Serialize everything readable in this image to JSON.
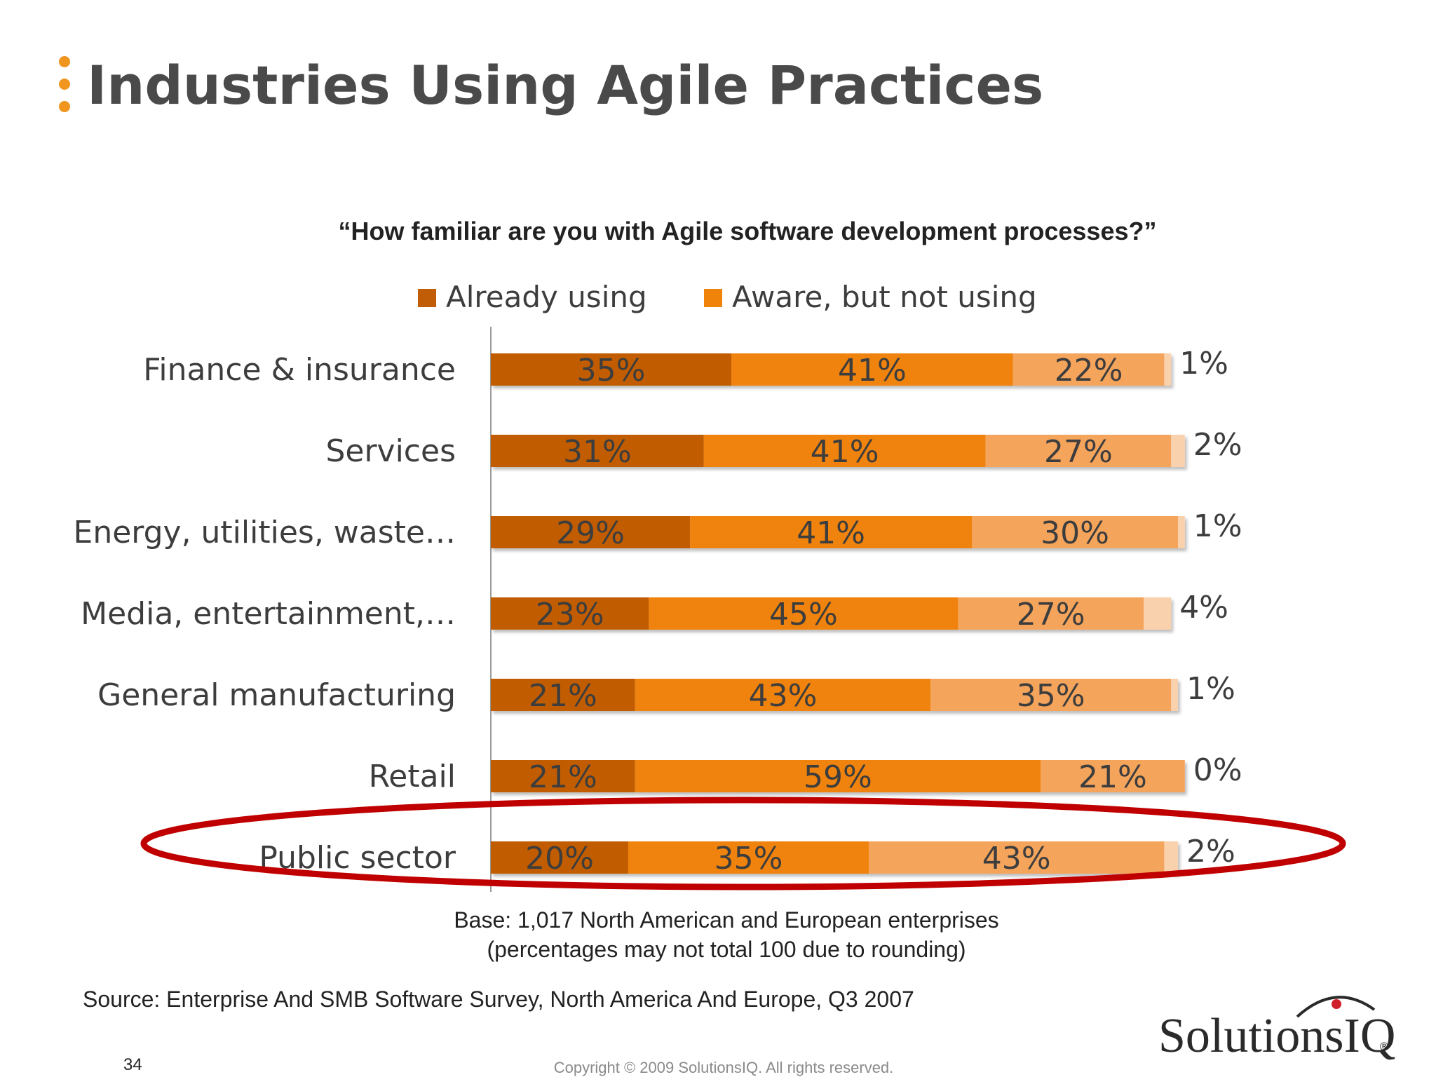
{
  "slide": {
    "title": "Industries Using Agile Practices",
    "question": "“How familiar are you with Agile software development processes?”",
    "base_line1": "Base: 1,017 North American and European enterprises",
    "base_line2": "(percentages may not total 100 due to rounding)",
    "source": "Source: Enterprise And SMB Software Survey, North America And Europe, Q3 2007",
    "page_number": "34",
    "copyright": "Copyright © 2009 SolutionsIQ. All rights reserved.",
    "logo_text": "SolutionsIQ",
    "logo_mark": "®",
    "highlighted_category": "Public sector"
  },
  "colors": {
    "accent_dot": "#f0961e",
    "highlight_ellipse": "#c00000",
    "logo_dot": "#d0202a",
    "series": [
      "#c15d06",
      "#f0830a",
      "#f5a45c",
      "#fad1ad"
    ]
  },
  "icons": {
    "title_bullet": "vertical-dots-icon",
    "legend_marker": "square-swatch-icon",
    "logo_arc": "arc-icon"
  },
  "chart_data": {
    "type": "bar",
    "orientation": "horizontal",
    "stacked": true,
    "categories": [
      "Finance & insurance",
      "Services",
      "Energy, utilities, waste…",
      "Media, entertainment,…",
      "General manufacturing",
      "Retail",
      "Public sector"
    ],
    "series": [
      {
        "name": "Already using",
        "values": [
          35,
          31,
          29,
          23,
          21,
          21,
          20
        ]
      },
      {
        "name": "Aware, but not using",
        "values": [
          41,
          41,
          41,
          45,
          43,
          59,
          35
        ]
      },
      {
        "values": [
          22,
          27,
          30,
          27,
          35,
          21,
          43
        ]
      },
      {
        "values": [
          1,
          2,
          1,
          4,
          1,
          0,
          2
        ]
      }
    ],
    "legend_entries": [
      "Already using",
      "Aware, but not using"
    ],
    "legend_position": "top",
    "label_format": "{v}%",
    "xlim": [
      0,
      100
    ],
    "grid": false
  }
}
